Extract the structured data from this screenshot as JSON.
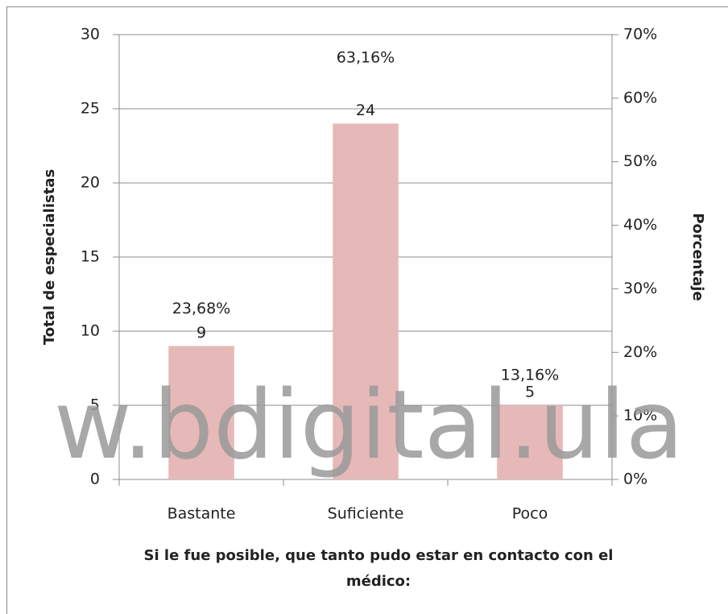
{
  "chart_data": {
    "type": "bar",
    "categories": [
      "Bastante",
      "Suficiente",
      "Poco"
    ],
    "series": [
      {
        "color": "#e6b9b8",
        "values": [
          9,
          24,
          5
        ]
      },
      {
        "axis": "y2",
        "values": [
          23.68,
          63.16,
          13.16
        ],
        "value_labels": [
          "23,68%",
          "63,16%",
          "13,16%"
        ]
      }
    ],
    "ylabel": "Total de especialistas",
    "y2label": "Porcentaje",
    "xlabel": [
      "Si le fue posible, que tanto pudo estar en contacto con el",
      "médico:"
    ],
    "ylim": [
      0,
      30
    ],
    "yticks": [
      0,
      5,
      10,
      15,
      20,
      25,
      30
    ],
    "y2lim": [
      0,
      70
    ],
    "y2ticks": [
      {
        "value": 0,
        "label": "0%"
      },
      {
        "value": 10,
        "label": "10%"
      },
      {
        "value": 20,
        "label": "20%"
      },
      {
        "value": 30,
        "label": "30%"
      },
      {
        "value": 40,
        "label": "40%"
      },
      {
        "value": 50,
        "label": "50%"
      },
      {
        "value": 60,
        "label": "60%"
      },
      {
        "value": 70,
        "label": "70%"
      }
    ],
    "grid": true,
    "watermark": "w.bdigital.ula"
  }
}
